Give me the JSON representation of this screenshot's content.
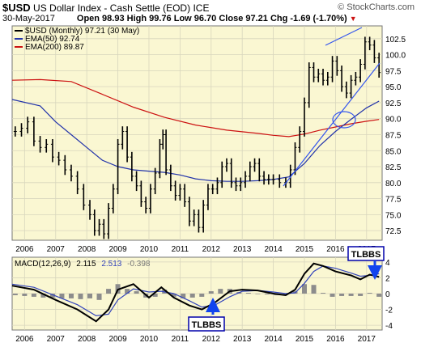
{
  "header": {
    "symbol": "$USD",
    "description": "US Dollar Index - Cash Settle (EOD)",
    "exchange": "ICE",
    "watermark": "© StockCharts.com",
    "date": "30-May-2017",
    "ohlc_text": "Open 98.93  High 99.76  Low 96.70  Close 97.21  Chg -1.69 (-1.70%)",
    "chg_arrow": "▼"
  },
  "legend": {
    "price": "$USD (Monthly) 97.21 (30 May)",
    "ema50": "EMA(50) 92.74",
    "ema200": "EMA(200) 89.87"
  },
  "macd_label": {
    "title": "MACD(12,26,9)",
    "macd": "2.115",
    "signal": "2.513",
    "hist": "-0.398"
  },
  "annotations": {
    "tlbbs_upper": "TLBBS",
    "tlbbs_lower": "TLBBS"
  },
  "colors": {
    "panel_bg": "#faf7d2",
    "grid": "#d8d6bd",
    "price": "#000000",
    "ema50": "#2233aa",
    "ema200": "#cc1111",
    "trend": "#3355ee",
    "macd_line": "#000000",
    "signal_line": "#3344bb",
    "hist": "#8c8c8c",
    "callout_border": "#0000aa",
    "callout_fill": "#ffffff",
    "arrow": "#1144ee"
  },
  "chart_data": [
    {
      "type": "line",
      "title": "$USD (Monthly)",
      "x_ticks": [
        "2006",
        "2007",
        "2008",
        "2009",
        "2010",
        "2011",
        "2012",
        "2013",
        "2014",
        "2015",
        "2016",
        "2017"
      ],
      "y_ticks": [
        72.5,
        75.0,
        77.5,
        80.0,
        82.5,
        85.0,
        87.5,
        90.0,
        92.5,
        95.0,
        97.5,
        100.0,
        102.5
      ],
      "ylim": [
        71.0,
        104.5
      ],
      "xlim": [
        2005.6,
        2017.5
      ],
      "grid": true,
      "series": [
        {
          "name": "$USD (Monthly)",
          "style": "ohlc-bars",
          "x": [
            2005.7,
            2005.9,
            2006.1,
            2006.3,
            2006.5,
            2006.7,
            2006.9,
            2007.1,
            2007.3,
            2007.5,
            2007.7,
            2007.9,
            2008.1,
            2008.25,
            2008.4,
            2008.55,
            2008.7,
            2008.85,
            2009.0,
            2009.15,
            2009.3,
            2009.45,
            2009.6,
            2009.75,
            2009.9,
            2010.05,
            2010.2,
            2010.35,
            2010.45,
            2010.55,
            2010.7,
            2010.85,
            2011.0,
            2011.15,
            2011.3,
            2011.45,
            2011.6,
            2011.75,
            2011.9,
            2012.05,
            2012.2,
            2012.35,
            2012.5,
            2012.65,
            2012.8,
            2012.95,
            2013.1,
            2013.25,
            2013.4,
            2013.55,
            2013.7,
            2013.85,
            2014.0,
            2014.2,
            2014.4,
            2014.55,
            2014.7,
            2014.85,
            2015.0,
            2015.15,
            2015.3,
            2015.45,
            2015.6,
            2015.75,
            2015.9,
            2016.05,
            2016.2,
            2016.35,
            2016.5,
            2016.65,
            2016.8,
            2016.95,
            2017.1,
            2017.25,
            2017.4
          ],
          "values": [
            88.0,
            88.5,
            89.5,
            86.5,
            85.5,
            86.0,
            84.0,
            83.5,
            82.0,
            81.0,
            79.0,
            76.5,
            75.0,
            72.5,
            73.5,
            72.0,
            76.0,
            79.0,
            86.0,
            88.0,
            84.0,
            81.0,
            79.5,
            77.0,
            76.0,
            79.0,
            81.5,
            86.0,
            87.5,
            82.0,
            79.5,
            78.0,
            79.0,
            77.0,
            74.0,
            75.0,
            73.0,
            76.5,
            79.0,
            79.0,
            80.0,
            82.5,
            83.0,
            80.0,
            79.5,
            80.0,
            81.0,
            82.5,
            83.0,
            81.0,
            80.5,
            80.5,
            80.5,
            80.0,
            80.0,
            82.0,
            85.5,
            88.0,
            92.5,
            98.0,
            96.5,
            97.0,
            96.0,
            96.5,
            99.0,
            97.5,
            95.0,
            94.0,
            96.0,
            96.5,
            98.5,
            102.0,
            101.5,
            99.5,
            97.21
          ]
        },
        {
          "name": "EMA(50)",
          "x": [
            2005.6,
            2006.5,
            2007.0,
            2007.5,
            2008.0,
            2008.5,
            2009.0,
            2009.5,
            2010.0,
            2010.5,
            2011.0,
            2011.5,
            2012.0,
            2012.5,
            2013.0,
            2013.5,
            2014.0,
            2014.5,
            2015.0,
            2015.5,
            2016.0,
            2016.5,
            2017.0,
            2017.4
          ],
          "values": [
            93.0,
            92.0,
            89.5,
            87.5,
            85.5,
            83.5,
            82.5,
            82.0,
            81.8,
            81.6,
            81.2,
            80.6,
            80.3,
            80.2,
            80.2,
            80.3,
            80.5,
            80.9,
            83.0,
            85.8,
            88.0,
            89.9,
            91.7,
            92.74
          ]
        },
        {
          "name": "EMA(200)",
          "x": [
            2005.6,
            2006.5,
            2007.5,
            2008.5,
            2009.5,
            2010.5,
            2011.5,
            2012.5,
            2013.5,
            2014.0,
            2014.5,
            2015.0,
            2015.5,
            2016.0,
            2016.5,
            2017.0,
            2017.4
          ],
          "values": [
            96.0,
            96.1,
            95.8,
            93.8,
            91.8,
            90.2,
            89.0,
            88.2,
            87.7,
            87.4,
            87.2,
            87.6,
            88.2,
            88.7,
            89.2,
            89.6,
            89.87
          ]
        }
      ]
    },
    {
      "type": "line",
      "title": "MACD(12,26,9)",
      "x_ticks": [
        "2006",
        "2007",
        "2008",
        "2009",
        "2010",
        "2011",
        "2012",
        "2013",
        "2014",
        "2015",
        "2016",
        "2017"
      ],
      "y_ticks": [
        -4,
        -2,
        0,
        2,
        4
      ],
      "ylim": [
        -4.6,
        4.6
      ],
      "xlim": [
        2005.6,
        2017.5
      ],
      "grid": true,
      "series": [
        {
          "name": "MACD",
          "x": [
            2005.6,
            2006.3,
            2007.0,
            2007.7,
            2008.3,
            2008.7,
            2009.0,
            2009.5,
            2010.0,
            2010.4,
            2010.8,
            2011.3,
            2011.7,
            2012.1,
            2012.6,
            2013.0,
            2013.5,
            2014.0,
            2014.4,
            2014.7,
            2015.0,
            2015.3,
            2015.6,
            2016.0,
            2016.5,
            2016.8,
            2017.1,
            2017.4
          ],
          "values": [
            1.0,
            0.5,
            -0.8,
            -2.0,
            -3.5,
            -2.0,
            0.5,
            1.2,
            -0.5,
            0.8,
            -0.5,
            -1.5,
            -2.0,
            -1.2,
            0.3,
            0.5,
            0.4,
            0.0,
            -0.2,
            0.5,
            2.5,
            3.8,
            3.5,
            2.8,
            2.3,
            1.8,
            2.4,
            2.115
          ]
        },
        {
          "name": "Signal",
          "x": [
            2005.6,
            2006.3,
            2007.0,
            2007.7,
            2008.3,
            2008.7,
            2009.0,
            2009.5,
            2010.0,
            2010.4,
            2010.8,
            2011.3,
            2011.7,
            2012.1,
            2012.6,
            2013.0,
            2013.5,
            2014.0,
            2014.4,
            2014.7,
            2015.0,
            2015.3,
            2015.6,
            2016.0,
            2016.5,
            2016.8,
            2017.1,
            2017.4
          ],
          "values": [
            1.2,
            0.8,
            -0.3,
            -1.4,
            -2.8,
            -2.6,
            -0.8,
            0.6,
            0.2,
            0.3,
            0.0,
            -0.9,
            -1.7,
            -1.5,
            -0.4,
            0.3,
            0.4,
            0.2,
            0.0,
            0.1,
            1.3,
            2.8,
            3.5,
            3.2,
            2.6,
            2.2,
            2.3,
            2.513
          ]
        },
        {
          "name": "Histogram",
          "style": "bars",
          "x": [
            2005.7,
            2006.0,
            2006.3,
            2006.6,
            2006.9,
            2007.2,
            2007.5,
            2007.8,
            2008.1,
            2008.4,
            2008.7,
            2009.0,
            2009.3,
            2009.6,
            2009.9,
            2010.2,
            2010.5,
            2010.8,
            2011.1,
            2011.4,
            2011.7,
            2012.0,
            2012.3,
            2012.6,
            2012.9,
            2013.2,
            2013.5,
            2013.8,
            2014.1,
            2014.4,
            2014.7,
            2015.0,
            2015.3,
            2015.6,
            2015.9,
            2016.2,
            2016.5,
            2016.8,
            2017.1,
            2017.4
          ],
          "values": [
            -0.2,
            -0.3,
            -0.4,
            -0.5,
            -0.5,
            -0.6,
            -0.6,
            -0.7,
            -0.6,
            -0.8,
            0.6,
            1.2,
            0.6,
            0.3,
            -0.5,
            -0.4,
            0.5,
            -0.4,
            -0.6,
            -0.5,
            -0.4,
            0.3,
            0.6,
            0.6,
            0.2,
            0.1,
            0.0,
            -0.1,
            -0.2,
            -0.1,
            0.3,
            1.2,
            1.1,
            0.1,
            -0.4,
            -0.3,
            -0.3,
            -0.3,
            0.1,
            -0.398
          ]
        }
      ]
    }
  ]
}
